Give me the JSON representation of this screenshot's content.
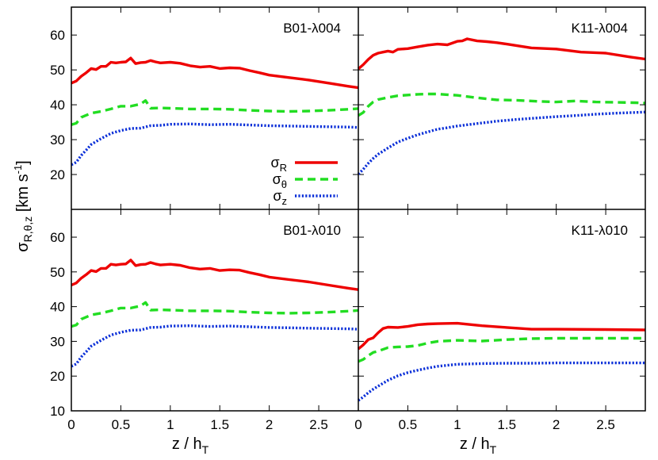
{
  "figure": {
    "ylabel_main": "σ",
    "ylabel_sub": "R,θ,z",
    "ylabel_unit": " [km s",
    "ylabel_sup": "-1",
    "ylabel_close": "]",
    "xlabel_main": "z / h",
    "xlabel_sub": "T"
  },
  "legend": [
    {
      "sym": "σ",
      "sub": "R",
      "color": "#ee0000",
      "dash": "solid"
    },
    {
      "sym": "σ",
      "sub": "θ",
      "color": "#22dd22",
      "dash": "dashed"
    },
    {
      "sym": "σ",
      "sub": "z",
      "color": "#0a2fd8",
      "dash": "dotted"
    }
  ],
  "chart_data": [
    {
      "type": "line",
      "title": "B01-λ004",
      "xlim": [
        0,
        2.9
      ],
      "ylim": [
        10,
        68
      ],
      "yticks": [
        "20",
        "30",
        "40",
        "50",
        "60"
      ],
      "xticks": [],
      "series": [
        {
          "name": "σR",
          "color": "#ee0000",
          "dash": "solid",
          "x": [
            0,
            0.05,
            0.1,
            0.15,
            0.2,
            0.25,
            0.3,
            0.35,
            0.4,
            0.45,
            0.5,
            0.55,
            0.6,
            0.65,
            0.7,
            0.75,
            0.8,
            0.85,
            0.9,
            1.0,
            1.1,
            1.2,
            1.3,
            1.4,
            1.5,
            1.6,
            1.7,
            1.8,
            1.9,
            2.0,
            2.2,
            2.4,
            2.6,
            2.8,
            2.9
          ],
          "y": [
            46.2,
            46.8,
            48.2,
            49.2,
            50.4,
            50.1,
            51.0,
            51.0,
            52.2,
            52.0,
            52.2,
            52.3,
            53.4,
            51.8,
            52.1,
            52.2,
            52.7,
            52.3,
            52.0,
            52.2,
            51.9,
            51.2,
            50.8,
            51.0,
            50.4,
            50.6,
            50.5,
            49.8,
            49.2,
            48.5,
            47.8,
            47.1,
            46.2,
            45.3,
            44.9
          ]
        },
        {
          "name": "σθ",
          "color": "#22dd22",
          "dash": "dashed",
          "x": [
            0,
            0.05,
            0.1,
            0.15,
            0.2,
            0.3,
            0.4,
            0.5,
            0.6,
            0.7,
            0.75,
            0.8,
            0.9,
            1.0,
            1.2,
            1.4,
            1.6,
            1.8,
            2.0,
            2.2,
            2.4,
            2.6,
            2.8,
            2.9
          ],
          "y": [
            34.3,
            34.7,
            36.4,
            37.0,
            37.6,
            38.1,
            38.8,
            39.6,
            39.6,
            40.2,
            41.2,
            39.0,
            39.1,
            39.0,
            38.8,
            38.8,
            38.7,
            38.4,
            38.2,
            38.1,
            38.2,
            38.4,
            38.7,
            38.9
          ]
        },
        {
          "name": "σz",
          "color": "#0a2fd8",
          "dash": "dotted",
          "x": [
            0,
            0.05,
            0.1,
            0.15,
            0.2,
            0.3,
            0.4,
            0.5,
            0.6,
            0.7,
            0.8,
            0.9,
            1.0,
            1.2,
            1.4,
            1.6,
            1.8,
            2.0,
            2.2,
            2.4,
            2.6,
            2.8,
            2.9
          ],
          "y": [
            22.8,
            23.5,
            25.5,
            27.0,
            28.6,
            30.3,
            31.8,
            32.6,
            33.2,
            33.3,
            34.0,
            34.1,
            34.4,
            34.5,
            34.3,
            34.4,
            34.2,
            34.0,
            33.9,
            33.8,
            33.7,
            33.6,
            33.5
          ]
        }
      ]
    },
    {
      "type": "line",
      "title": "K11-λ004",
      "xlim": [
        0,
        2.9
      ],
      "ylim": [
        10,
        68
      ],
      "yticks": [],
      "xticks": [],
      "series": [
        {
          "name": "σR",
          "color": "#ee0000",
          "dash": "solid",
          "x": [
            0,
            0.05,
            0.1,
            0.15,
            0.2,
            0.25,
            0.3,
            0.35,
            0.4,
            0.5,
            0.6,
            0.7,
            0.8,
            0.9,
            1.0,
            1.05,
            1.1,
            1.2,
            1.3,
            1.4,
            1.5,
            1.75,
            2.0,
            2.25,
            2.5,
            2.75,
            2.9
          ],
          "y": [
            50.3,
            51.5,
            53.0,
            54.2,
            54.8,
            55.1,
            55.4,
            55.1,
            55.9,
            56.1,
            56.6,
            57.1,
            57.4,
            57.2,
            58.2,
            58.3,
            58.9,
            58.3,
            58.1,
            57.8,
            57.4,
            56.3,
            56.0,
            55.1,
            54.8,
            53.7,
            53.1
          ]
        },
        {
          "name": "σθ",
          "color": "#22dd22",
          "dash": "dashed",
          "x": [
            0,
            0.05,
            0.1,
            0.15,
            0.2,
            0.3,
            0.4,
            0.5,
            0.6,
            0.7,
            0.8,
            0.9,
            1.0,
            1.2,
            1.4,
            1.6,
            1.8,
            2.0,
            2.2,
            2.4,
            2.6,
            2.8,
            2.9
          ],
          "y": [
            36.9,
            37.8,
            39.6,
            40.8,
            41.5,
            42.1,
            42.6,
            42.8,
            43.0,
            43.1,
            43.1,
            42.9,
            42.7,
            42.0,
            41.4,
            41.3,
            41.0,
            40.8,
            41.1,
            40.8,
            40.7,
            40.6,
            40.5
          ]
        },
        {
          "name": "σz",
          "color": "#0a2fd8",
          "dash": "dotted",
          "x": [
            0,
            0.05,
            0.1,
            0.15,
            0.2,
            0.3,
            0.4,
            0.5,
            0.6,
            0.7,
            0.8,
            0.9,
            1.0,
            1.2,
            1.4,
            1.6,
            1.8,
            2.0,
            2.2,
            2.4,
            2.6,
            2.8,
            2.9
          ],
          "y": [
            20.1,
            21.5,
            23.2,
            24.6,
            25.8,
            27.6,
            29.3,
            30.4,
            31.4,
            32.2,
            33.0,
            33.4,
            33.9,
            34.6,
            35.3,
            35.8,
            36.2,
            36.6,
            36.9,
            37.3,
            37.6,
            37.8,
            37.9
          ]
        }
      ]
    },
    {
      "type": "line",
      "title": "B01-λ010",
      "xlim": [
        0,
        2.9
      ],
      "ylim": [
        10,
        68
      ],
      "yticks": [
        "10",
        "20",
        "30",
        "40",
        "50",
        "60"
      ],
      "xticks": [
        "0",
        "0.5",
        "1",
        "1.5",
        "2",
        "2.5"
      ],
      "series": [
        {
          "name": "σR",
          "color": "#ee0000",
          "dash": "solid",
          "x": [
            0,
            0.05,
            0.1,
            0.15,
            0.2,
            0.25,
            0.3,
            0.35,
            0.4,
            0.45,
            0.5,
            0.55,
            0.6,
            0.65,
            0.7,
            0.75,
            0.8,
            0.85,
            0.9,
            1.0,
            1.1,
            1.2,
            1.3,
            1.4,
            1.5,
            1.6,
            1.7,
            1.8,
            1.9,
            2.0,
            2.2,
            2.4,
            2.6,
            2.8,
            2.9
          ],
          "y": [
            46.2,
            46.8,
            48.2,
            49.2,
            50.4,
            50.1,
            51.0,
            51.0,
            52.2,
            52.0,
            52.2,
            52.3,
            53.4,
            51.8,
            52.1,
            52.2,
            52.7,
            52.3,
            52.0,
            52.2,
            51.9,
            51.2,
            50.8,
            51.0,
            50.4,
            50.6,
            50.5,
            49.8,
            49.2,
            48.5,
            47.8,
            47.1,
            46.2,
            45.3,
            44.9
          ]
        },
        {
          "name": "σθ",
          "color": "#22dd22",
          "dash": "dashed",
          "x": [
            0,
            0.05,
            0.1,
            0.15,
            0.2,
            0.3,
            0.4,
            0.5,
            0.6,
            0.7,
            0.75,
            0.8,
            0.9,
            1.0,
            1.2,
            1.4,
            1.6,
            1.8,
            2.0,
            2.2,
            2.4,
            2.6,
            2.8,
            2.9
          ],
          "y": [
            34.3,
            34.7,
            36.4,
            37.0,
            37.6,
            38.1,
            38.8,
            39.6,
            39.6,
            40.2,
            41.2,
            39.0,
            39.1,
            39.0,
            38.8,
            38.8,
            38.7,
            38.4,
            38.2,
            38.1,
            38.2,
            38.4,
            38.7,
            38.9
          ]
        },
        {
          "name": "σz",
          "color": "#0a2fd8",
          "dash": "dotted",
          "x": [
            0,
            0.05,
            0.1,
            0.15,
            0.2,
            0.3,
            0.4,
            0.5,
            0.6,
            0.7,
            0.8,
            0.9,
            1.0,
            1.2,
            1.4,
            1.6,
            1.8,
            2.0,
            2.2,
            2.4,
            2.6,
            2.8,
            2.9
          ],
          "y": [
            22.8,
            23.5,
            25.5,
            27.0,
            28.6,
            30.3,
            31.8,
            32.6,
            33.2,
            33.3,
            34.0,
            34.1,
            34.4,
            34.5,
            34.3,
            34.4,
            34.2,
            34.0,
            33.9,
            33.8,
            33.7,
            33.6,
            33.5
          ]
        }
      ]
    },
    {
      "type": "line",
      "title": "K11-λ010",
      "xlim": [
        0,
        2.9
      ],
      "ylim": [
        10,
        68
      ],
      "yticks": [],
      "xticks": [
        "0",
        "0.5",
        "1",
        "1.5",
        "2",
        "2.5"
      ],
      "series": [
        {
          "name": "σR",
          "color": "#ee0000",
          "dash": "solid",
          "x": [
            0,
            0.05,
            0.1,
            0.15,
            0.2,
            0.25,
            0.3,
            0.4,
            0.5,
            0.6,
            0.7,
            0.8,
            1.0,
            1.25,
            1.5,
            1.75,
            2.0,
            2.5,
            2.9
          ],
          "y": [
            27.8,
            29.0,
            30.5,
            31.0,
            32.5,
            33.7,
            34.1,
            34.0,
            34.3,
            34.8,
            35.0,
            35.1,
            35.2,
            34.5,
            34.0,
            33.5,
            33.5,
            33.4,
            33.3
          ]
        },
        {
          "name": "σθ",
          "color": "#22dd22",
          "dash": "dashed",
          "x": [
            0,
            0.05,
            0.1,
            0.15,
            0.2,
            0.3,
            0.4,
            0.5,
            0.6,
            0.7,
            0.8,
            1.0,
            1.25,
            1.5,
            1.75,
            2.0,
            2.5,
            2.9
          ],
          "y": [
            24.2,
            24.8,
            25.9,
            26.8,
            27.2,
            28.2,
            28.4,
            28.5,
            28.8,
            29.5,
            30.0,
            30.3,
            30.1,
            30.5,
            30.8,
            30.9,
            30.9,
            30.9
          ]
        },
        {
          "name": "σz",
          "color": "#0a2fd8",
          "dash": "dotted",
          "x": [
            0,
            0.05,
            0.1,
            0.15,
            0.2,
            0.3,
            0.4,
            0.5,
            0.6,
            0.7,
            0.8,
            1.0,
            1.25,
            1.5,
            1.75,
            2.0,
            2.5,
            2.9
          ],
          "y": [
            13.0,
            14.0,
            15.2,
            16.2,
            17.1,
            18.8,
            20.1,
            21.0,
            21.7,
            22.3,
            22.8,
            23.4,
            23.6,
            23.7,
            23.7,
            23.8,
            23.8,
            23.8
          ]
        }
      ]
    }
  ]
}
